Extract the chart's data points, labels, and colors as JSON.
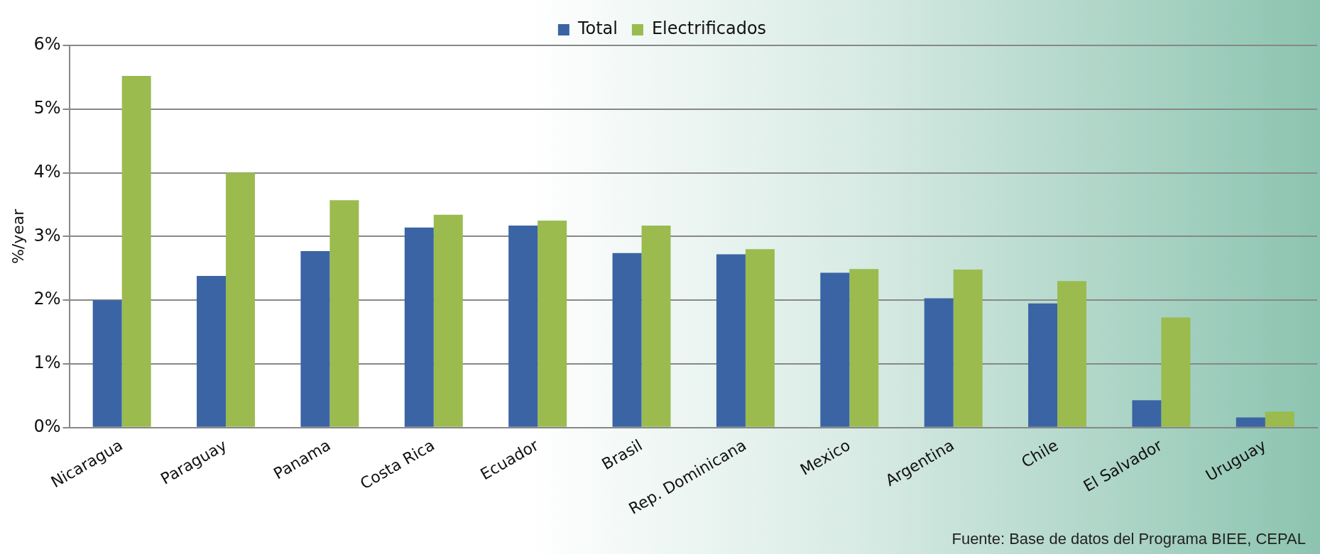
{
  "chart_data": {
    "type": "bar",
    "ylabel": "%/year",
    "categories": [
      "Nicaragua",
      "Paraguay",
      "Panama",
      "Costa Rica",
      "Ecuador",
      "Brasil",
      "Rep. Dominicana",
      "Mexico",
      "Argentina",
      "Chile",
      "El Salvador",
      "Uruguay"
    ],
    "series": [
      {
        "name": "Total",
        "color": "#3a64a4",
        "values": [
          2.0,
          2.38,
          2.77,
          3.14,
          3.17,
          2.74,
          2.72,
          2.43,
          2.03,
          1.95,
          0.43,
          0.16
        ]
      },
      {
        "name": "Electrificados",
        "color": "#9bbb4f",
        "values": [
          5.52,
          4.0,
          3.57,
          3.34,
          3.25,
          3.17,
          2.8,
          2.49,
          2.48,
          2.3,
          1.73,
          0.25
        ]
      }
    ],
    "ylim": [
      0,
      6
    ],
    "yticks": [
      {
        "value": 0,
        "label": "0%"
      },
      {
        "value": 1,
        "label": "1%"
      },
      {
        "value": 2,
        "label": "2%"
      },
      {
        "value": 3,
        "label": "3%"
      },
      {
        "value": 4,
        "label": "4%"
      },
      {
        "value": 5,
        "label": "5%"
      },
      {
        "value": 6,
        "label": "6%"
      }
    ],
    "grid": "y",
    "legend": "top",
    "annotations": [
      "Fuente: Base de datos del Programa BIEE, CEPAL"
    ]
  }
}
